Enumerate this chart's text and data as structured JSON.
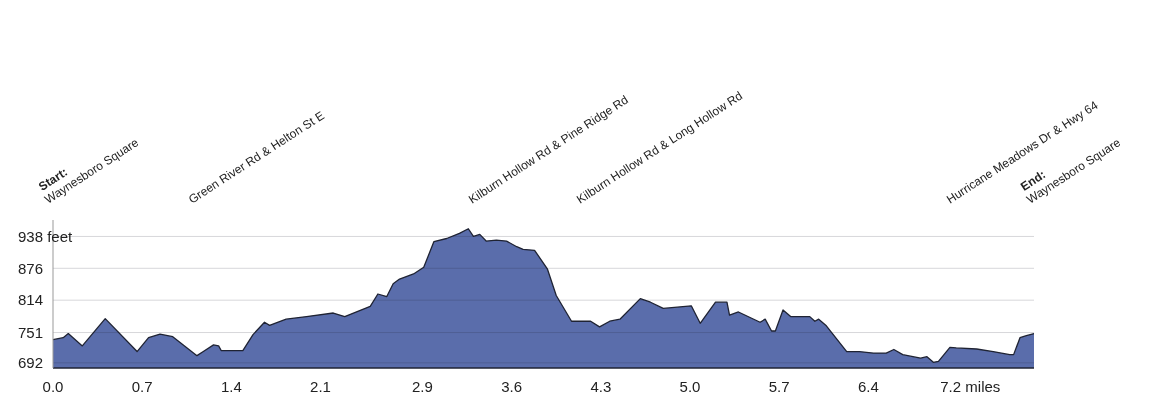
{
  "chart_data": {
    "type": "area",
    "x": [
      0,
      0.08,
      0.12,
      0.23,
      0.41,
      0.66,
      0.75,
      0.84,
      0.94,
      1.13,
      1.18,
      1.26,
      1.3,
      1.32,
      1.49,
      1.57,
      1.66,
      1.7,
      1.83,
      1.99,
      2.2,
      2.29,
      2.49,
      2.55,
      2.62,
      2.67,
      2.72,
      2.83,
      2.91,
      2.99,
      3.09,
      3.19,
      3.26,
      3.3,
      3.35,
      3.4,
      3.48,
      3.56,
      3.64,
      3.69,
      3.78,
      3.88,
      3.95,
      4.07,
      4.22,
      4.29,
      4.37,
      4.45,
      4.61,
      4.69,
      4.79,
      5.01,
      5.08,
      5.2,
      5.29,
      5.31,
      5.38,
      5.55,
      5.59,
      5.64,
      5.67,
      5.73,
      5.79,
      5.94,
      5.98,
      6.01,
      6.07,
      6.23,
      6.33,
      6.44,
      6.54,
      6.6,
      6.67,
      6.75,
      6.81,
      6.86,
      6.91,
      6.95,
      7.04,
      7.09,
      7.25,
      7.38,
      7.51,
      7.54,
      7.59,
      7.64,
      7.7
    ],
    "series": [
      {
        "color": "#5a6dab",
        "values": [
          737,
          741,
          749,
          725,
          778,
          714,
          741,
          748,
          743,
          706,
          714,
          727,
          725,
          716,
          716,
          747,
          771,
          765,
          777,
          782,
          789,
          782,
          802,
          826,
          821,
          846,
          855,
          865,
          878,
          928,
          934,
          944,
          953,
          938,
          942,
          929,
          931,
          929,
          918,
          913,
          911,
          875,
          823,
          773,
          773,
          762,
          773,
          777,
          817,
          810,
          798,
          803,
          769,
          810,
          810,
          785,
          791,
          771,
          777,
          754,
          754,
          795,
          782,
          782,
          773,
          777,
          764,
          714,
          714,
          711,
          711,
          718,
          708,
          704,
          701,
          704,
          693,
          695,
          722,
          721,
          719,
          714,
          708,
          708,
          741,
          745,
          749
        ]
      }
    ],
    "xlim": [
      0,
      7.7
    ],
    "ylim": [
      682,
      970
    ],
    "xticks": [
      {
        "value": 0,
        "label": "0.0"
      },
      {
        "value": 0.7,
        "label": "0.7"
      },
      {
        "value": 1.4,
        "label": "1.4"
      },
      {
        "value": 2.1,
        "label": "2.1"
      },
      {
        "value": 2.9,
        "label": "2.9"
      },
      {
        "value": 3.6,
        "label": "3.6"
      },
      {
        "value": 4.3,
        "label": "4.3"
      },
      {
        "value": 5.0,
        "label": "5.0"
      },
      {
        "value": 5.7,
        "label": "5.7"
      },
      {
        "value": 6.4,
        "label": "6.4"
      },
      {
        "value": 7.2,
        "label": "7.2 miles"
      }
    ],
    "yticks": [
      692,
      751,
      814,
      876,
      {
        "value": 938,
        "label": "938 feet"
      }
    ],
    "grid": "y",
    "annotations": [
      "Start:\nWaynesboro Square",
      "Green River Rd & Helton St E",
      "Kilburn Hollow Rd & Pine Ridge Rd",
      "Kilburn Hollow Rd & Long Hollow Rd",
      "Hurricane Meadows Dr & Hwy 64",
      "End:\nWaynesboro Square"
    ]
  }
}
